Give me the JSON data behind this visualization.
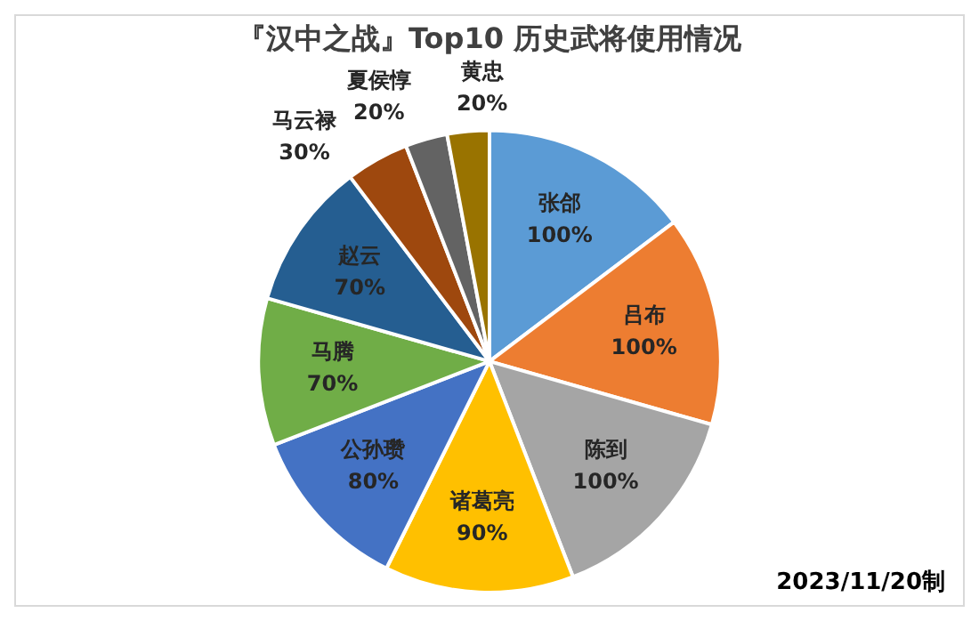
{
  "chart_data": {
    "type": "pie",
    "title": "『汉中之战』Top10 历史武将使用情况",
    "categories": [
      "张郃",
      "吕布",
      "陈到",
      "诸葛亮",
      "公孙瓒",
      "马腾",
      "赵云",
      "马云禄",
      "夏侯惇",
      "黄忠"
    ],
    "values": [
      100,
      100,
      100,
      90,
      80,
      70,
      70,
      30,
      20,
      20
    ],
    "value_labels": [
      "100%",
      "100%",
      "100%",
      "90%",
      "80%",
      "70%",
      "70%",
      "30%",
      "20%",
      "20%"
    ],
    "colors": [
      "#5b9bd5",
      "#ed7d31",
      "#a5a5a5",
      "#ffc000",
      "#4472c4",
      "#70ad47",
      "#255e91",
      "#9e480e",
      "#636363",
      "#997300"
    ],
    "annotations": [
      "2023/11/20制"
    ],
    "legend": false
  }
}
